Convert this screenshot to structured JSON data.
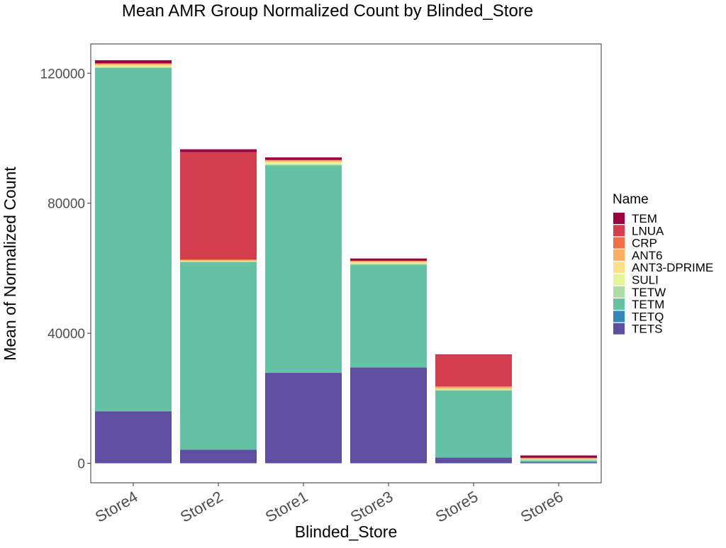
{
  "chart_data": {
    "type": "bar",
    "stacked": true,
    "title": "Mean AMR Group Normalized Count by Blinded_Store",
    "xlabel": "Blinded_Store",
    "ylabel": "Mean of Normalized Count",
    "ylim": [
      -6000,
      129000
    ],
    "yticks": [
      0,
      40000,
      80000,
      120000
    ],
    "ytick_labels": [
      "0",
      "40000",
      "80000",
      "120000"
    ],
    "grid": false,
    "legend": {
      "title": "Name",
      "position": "right"
    },
    "categories": [
      "Store4",
      "Store2",
      "Store1",
      "Store3",
      "Store5",
      "Store6"
    ],
    "series": [
      {
        "name": "TETS",
        "color": "#5E4FA2",
        "values": [
          16000,
          4200,
          27800,
          29500,
          1800,
          300
        ]
      },
      {
        "name": "TETQ",
        "color": "#3288BD",
        "values": [
          0,
          0,
          0,
          0,
          0,
          200
        ]
      },
      {
        "name": "TETM",
        "color": "#66C2A5",
        "values": [
          105600,
          57800,
          63800,
          31600,
          20600,
          300
        ]
      },
      {
        "name": "TETW",
        "color": "#ABDDA4",
        "values": [
          300,
          0,
          400,
          300,
          300,
          500
        ]
      },
      {
        "name": "SULI",
        "color": "#E6F598",
        "values": [
          200,
          100,
          300,
          200,
          100,
          100
        ]
      },
      {
        "name": "ANT3-DPRIME",
        "color": "#FEE08B",
        "values": [
          400,
          200,
          500,
          300,
          200,
          100
        ]
      },
      {
        "name": "ANT6",
        "color": "#FDAE61",
        "values": [
          400,
          300,
          400,
          300,
          500,
          100
        ]
      },
      {
        "name": "CRP",
        "color": "#F46D43",
        "values": [
          100,
          100,
          100,
          100,
          100,
          50
        ]
      },
      {
        "name": "LNUA",
        "color": "#D53E4F",
        "values": [
          100,
          33000,
          0,
          0,
          9700,
          50
        ]
      },
      {
        "name": "TEM",
        "color": "#9E0142",
        "values": [
          900,
          900,
          800,
          700,
          200,
          700
        ]
      }
    ]
  }
}
